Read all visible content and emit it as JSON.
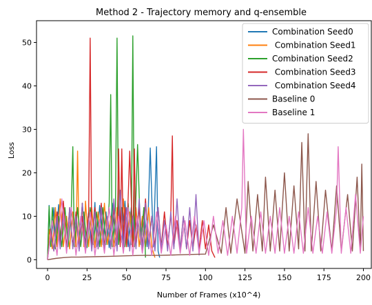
{
  "chart_data": {
    "type": "line",
    "title": "Method 2 - Trajectory memory and q-ensemble",
    "xlabel": "Number of Frames (x10^4)",
    "ylabel": "Loss",
    "xlim": [
      -7,
      205
    ],
    "ylim": [
      -2,
      55
    ],
    "xticks": [
      0,
      25,
      50,
      75,
      100,
      125,
      150,
      175,
      200
    ],
    "yticks": [
      0,
      10,
      20,
      30,
      40,
      50
    ],
    "legend_position": "top-right",
    "grid": false,
    "series": [
      {
        "name": "Combination Seed0",
        "color": "#1f77b4",
        "x": [
          0,
          1,
          2,
          4,
          5,
          7,
          8,
          10,
          12,
          14,
          16,
          18,
          20,
          22,
          24,
          26,
          28,
          30,
          31,
          33,
          35,
          37,
          39,
          41,
          43,
          45,
          47,
          49,
          51,
          53,
          55,
          57,
          59,
          61,
          63,
          65,
          67,
          69,
          70,
          71
        ],
        "y": [
          0,
          12.5,
          3,
          12,
          2.5,
          12.7,
          3.5,
          10,
          2.8,
          11,
          3,
          10.5,
          2.5,
          13,
          3.5,
          11,
          3,
          13.2,
          3,
          12.5,
          3.5,
          11,
          2.8,
          13,
          3.2,
          12,
          4,
          13.5,
          3,
          12,
          4,
          10,
          3.5,
          12,
          3,
          25.7,
          3,
          26,
          2,
          0.5
        ]
      },
      {
        "name": " Combination Seed1",
        "color": "#ff7f0e",
        "x": [
          0,
          1,
          3,
          5,
          6,
          8,
          10,
          12,
          14,
          16,
          18,
          19,
          20,
          22,
          23,
          24,
          26,
          28,
          30,
          32,
          34,
          36,
          38,
          40,
          42,
          44,
          46,
          48,
          50,
          52,
          54,
          56,
          58,
          60,
          62,
          64,
          66,
          68
        ],
        "y": [
          0,
          7,
          2.5,
          12,
          3,
          14,
          3,
          10,
          2.5,
          11,
          3,
          25,
          2.5,
          13,
          3,
          13.5,
          3,
          12,
          2.8,
          11,
          3,
          13,
          3.5,
          10,
          3,
          12,
          3.5,
          14,
          3,
          11,
          3.5,
          12,
          3,
          10,
          3,
          12,
          3,
          0.5
        ]
      },
      {
        "name": "Combination Seed2",
        "color": "#2ca02c",
        "x": [
          0,
          1,
          2,
          3,
          5,
          7,
          9,
          11,
          13,
          15,
          16,
          17,
          19,
          21,
          23,
          25,
          27,
          29,
          31,
          33,
          35,
          37,
          39,
          40,
          41,
          43,
          44,
          45,
          47,
          49,
          51,
          53,
          54,
          55,
          57,
          59,
          61,
          62
        ],
        "y": [
          0,
          12.3,
          3,
          12,
          2.5,
          10,
          3,
          12,
          3,
          11,
          26,
          3,
          12,
          3,
          11,
          2.8,
          12,
          3.5,
          11,
          3,
          12,
          3.5,
          13,
          38,
          3,
          12,
          51,
          3.5,
          12,
          3,
          13,
          3.5,
          51.5,
          3,
          26.5,
          3.5,
          12,
          0.5
        ]
      },
      {
        "name": " Combination Seed3",
        "color": "#d62728",
        "x": [
          0,
          2,
          4,
          6,
          8,
          10,
          12,
          14,
          16,
          18,
          20,
          22,
          24,
          26,
          27,
          28,
          30,
          32,
          34,
          36,
          38,
          40,
          42,
          44,
          45,
          46,
          47,
          48,
          49,
          50,
          52,
          54,
          55,
          56,
          58,
          60,
          62,
          64,
          66,
          68,
          70,
          72,
          74,
          76,
          78,
          79,
          80,
          82,
          84,
          86,
          88,
          90,
          92,
          94,
          96,
          98,
          100,
          102,
          104,
          106
        ],
        "y": [
          0,
          7,
          2,
          11,
          3,
          13.5,
          2.5,
          12,
          3,
          11,
          2.5,
          10,
          3,
          11,
          51,
          3,
          12,
          2.5,
          13,
          3,
          10,
          2.8,
          12,
          3,
          25.5,
          3,
          25.5,
          3,
          12,
          3,
          25,
          3,
          25.5,
          3,
          12,
          3,
          14,
          3,
          10,
          3,
          12,
          3,
          11,
          3,
          10,
          28.5,
          3,
          9,
          2.5,
          10,
          2.5,
          9,
          2.5,
          8,
          2.5,
          9,
          2.5,
          8,
          2,
          0.5
        ]
      },
      {
        "name": " Combination Seed4",
        "color": "#9467bd",
        "x": [
          0,
          2,
          4,
          6,
          8,
          10,
          12,
          14,
          16,
          18,
          20,
          22,
          24,
          26,
          28,
          30,
          32,
          34,
          36,
          38,
          40,
          42,
          44,
          46,
          48,
          50,
          52,
          54,
          56,
          58,
          60,
          62,
          64,
          66,
          68,
          70,
          72,
          74,
          76,
          78,
          80,
          82,
          84,
          86,
          88,
          90,
          92,
          94,
          96
        ],
        "y": [
          0,
          6,
          2,
          10,
          2.5,
          11,
          2,
          12,
          2.5,
          10,
          2,
          13,
          2.5,
          9,
          2,
          11,
          2.5,
          12,
          2,
          10,
          2.5,
          14,
          2,
          16,
          2.5,
          12,
          2,
          10,
          2.5,
          14,
          2,
          13,
          2.5,
          10,
          2,
          12,
          2.5,
          9,
          2,
          11,
          2.5,
          14,
          2,
          10,
          2.5,
          12,
          2,
          15,
          1
        ]
      },
      {
        "name": "Baseline 0",
        "color": "#8c564b",
        "x": [
          0,
          5,
          10,
          15,
          20,
          30,
          40,
          50,
          60,
          70,
          80,
          90,
          100,
          105,
          110,
          113,
          116,
          120,
          125,
          127,
          130,
          133,
          136,
          138,
          141,
          144,
          147,
          150,
          153,
          156,
          159,
          161,
          163,
          165,
          167,
          170,
          173,
          176,
          180,
          183,
          186,
          190,
          193,
          196,
          198,
          199,
          200
        ],
        "y": [
          0,
          0.3,
          0.5,
          0.6,
          0.6,
          0.7,
          0.8,
          0.9,
          1,
          1,
          1.1,
          1.2,
          1.3,
          8,
          1.5,
          12,
          1.5,
          14,
          1.5,
          18,
          2,
          15,
          2,
          19,
          2,
          16,
          2,
          20,
          2,
          17,
          2.5,
          27,
          2,
          29,
          2,
          18,
          2,
          16,
          2,
          17,
          2,
          15,
          2,
          19,
          2,
          22,
          2
        ]
      },
      {
        "name": "Baseline 1",
        "color": "#e377c2",
        "x": [
          0,
          3,
          6,
          9,
          12,
          15,
          18,
          21,
          24,
          27,
          30,
          33,
          36,
          39,
          42,
          45,
          48,
          51,
          54,
          57,
          60,
          63,
          66,
          69,
          72,
          75,
          78,
          81,
          84,
          87,
          90,
          93,
          96,
          99,
          102,
          105,
          108,
          111,
          114,
          117,
          120,
          123,
          124,
          126,
          129,
          132,
          135,
          138,
          141,
          144,
          147,
          150,
          153,
          156,
          159,
          162,
          165,
          168,
          171,
          174,
          177,
          180,
          183,
          184,
          186,
          189,
          192,
          195,
          198,
          200
        ],
        "y": [
          0,
          9,
          1,
          14,
          1.5,
          12,
          1,
          10,
          1.5,
          11,
          1,
          9,
          1.5,
          12,
          1,
          10,
          1.5,
          12,
          1,
          10,
          1.5,
          9,
          1,
          11,
          1.5,
          8,
          1,
          10,
          1.5,
          9,
          1,
          10,
          1.5,
          9,
          1,
          10,
          1.5,
          9,
          1,
          10,
          1.5,
          12,
          30,
          1.5,
          10,
          1.5,
          11,
          1.5,
          10,
          1.5,
          12,
          1.5,
          10,
          1.5,
          11,
          1.5,
          12,
          1.5,
          10,
          1.5,
          11,
          1.5,
          12,
          26,
          1.5,
          12,
          1.5,
          15,
          1.5,
          10
        ]
      }
    ]
  }
}
